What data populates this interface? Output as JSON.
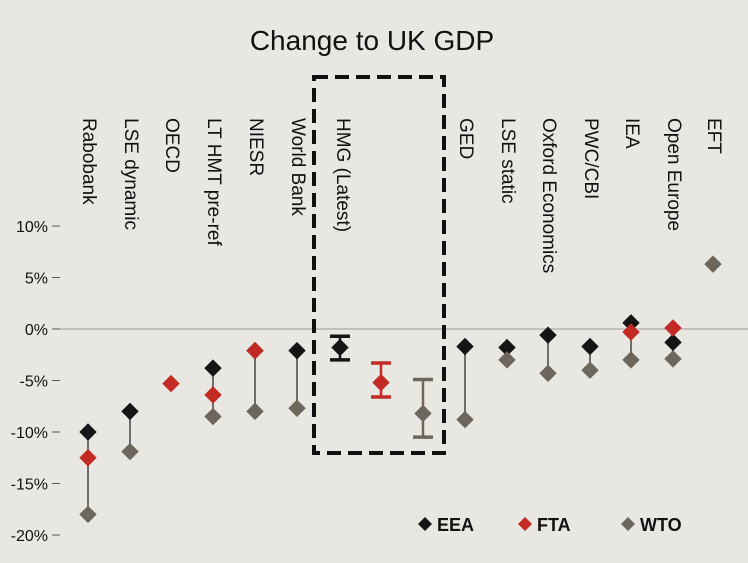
{
  "chart_data": {
    "type": "scatter",
    "title": "Change to UK GDP",
    "xlabel": "",
    "ylabel": "",
    "ylim": [
      -20,
      10
    ],
    "yticks": [
      10,
      5,
      0,
      -5,
      -10,
      -15,
      -20
    ],
    "ytick_labels": [
      "10%",
      "5%",
      "0%",
      "-5%",
      "-10%",
      "-15%",
      "-20%"
    ],
    "zero_line": true,
    "legend_position": "bottom-right",
    "colors": {
      "EEA": "#151515",
      "FTA": "#c42a24",
      "WTO": "#6d665d",
      "highlight_box": "#111111"
    },
    "categories": [
      "Rabobank",
      "LSE dynamic",
      "OECD",
      "LT HMT pre-ref",
      "NIESR",
      "World Bank",
      "HMG (Latest)",
      "GED",
      "LSE static",
      "Oxford Economics",
      "PWC/CBI",
      "IEA",
      "Open Europe",
      "EFT"
    ],
    "highlight_category": "HMG (Latest)",
    "series": [
      {
        "name": "EEA",
        "values": [
          -10,
          -8,
          null,
          -3.8,
          -2.1,
          -2.1,
          -1.8,
          -1.7,
          -1.8,
          -0.6,
          -1.7,
          0.6,
          -1.3,
          null
        ]
      },
      {
        "name": "FTA",
        "values": [
          -12.5,
          null,
          -5.3,
          -6.4,
          -2.1,
          null,
          -5.2,
          null,
          null,
          null,
          null,
          -0.3,
          0.1,
          null
        ]
      },
      {
        "name": "WTO",
        "values": [
          -18,
          -11.9,
          null,
          -8.5,
          -8,
          -7.7,
          -8.2,
          -8.8,
          -3,
          -4.3,
          -4,
          -3,
          -2.9,
          6.3
        ]
      }
    ],
    "hmg_ranges": [
      {
        "series": "EEA",
        "low": -3,
        "high": -0.7
      },
      {
        "series": "FTA",
        "low": -6.6,
        "high": -3.3
      },
      {
        "series": "WTO",
        "low": -10.5,
        "high": -4.9
      }
    ]
  }
}
